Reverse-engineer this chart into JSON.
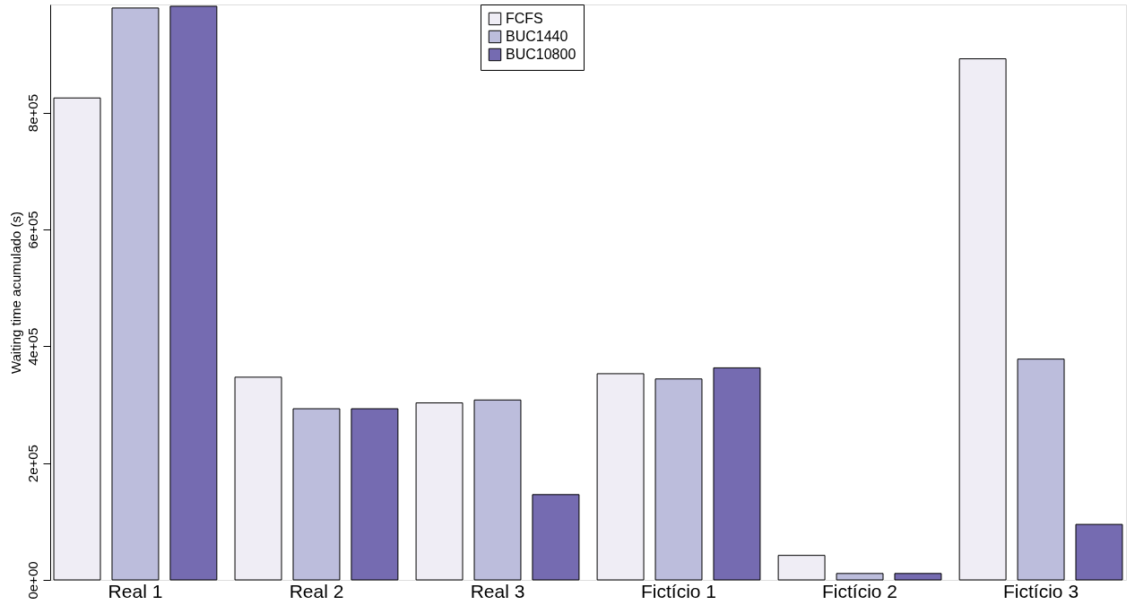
{
  "chart_data": {
    "type": "bar",
    "ylabel": "Waiting time acumulado (s)",
    "categories": [
      "Real 1",
      "Real 2",
      "Real 3",
      "Fictício 1",
      "Fictício 2",
      "Fictício 3"
    ],
    "series": [
      {
        "name": "FCFS",
        "color": "#efedf5",
        "values": [
          825000,
          347000,
          303000,
          353000,
          42000,
          892000
        ]
      },
      {
        "name": "BUC1440",
        "color": "#bcbddc",
        "values": [
          979000,
          293000,
          308000,
          344000,
          11000,
          378000
        ]
      },
      {
        "name": "BUC10800",
        "color": "#756bb1",
        "values": [
          982000,
          293000,
          146000,
          363000,
          11000,
          95000
        ]
      }
    ],
    "ylim": [
      0,
      985000
    ],
    "yticks": [
      {
        "value": 0,
        "label": "0e+00"
      },
      {
        "value": 200000,
        "label": "2e+05"
      },
      {
        "value": 400000,
        "label": "4e+05"
      },
      {
        "value": 600000,
        "label": "6e+05"
      },
      {
        "value": 800000,
        "label": "8e+05"
      }
    ],
    "legend": "top",
    "grid": false
  }
}
